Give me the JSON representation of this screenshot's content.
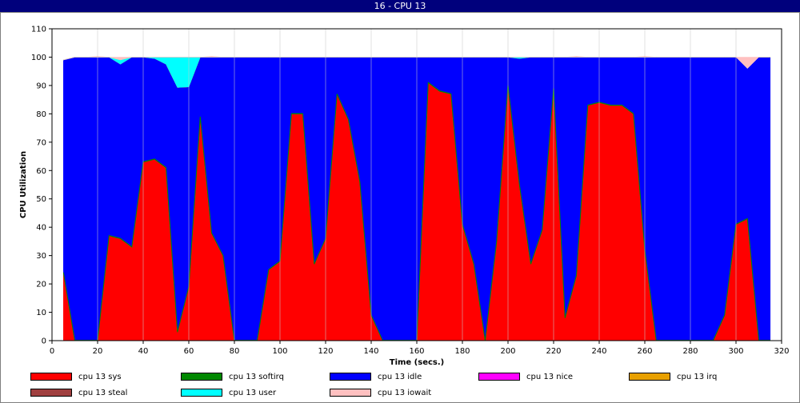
{
  "window": {
    "title": "16 - CPU 13"
  },
  "chart_data": {
    "type": "area",
    "stacked": true,
    "xlabel": "Time (secs.)",
    "ylabel": "CPU Utilization",
    "xlim": [
      0,
      320
    ],
    "ylim": [
      0,
      110
    ],
    "xticks": [
      0,
      20,
      40,
      60,
      80,
      100,
      120,
      140,
      160,
      180,
      200,
      220,
      240,
      260,
      280,
      300,
      320
    ],
    "yticks": [
      0,
      10,
      20,
      30,
      40,
      50,
      60,
      70,
      80,
      90,
      100,
      110
    ],
    "grid": true,
    "legend_position": "bottom",
    "x": [
      5,
      10,
      15,
      20,
      25,
      30,
      35,
      40,
      45,
      50,
      55,
      60,
      65,
      70,
      75,
      80,
      85,
      90,
      95,
      100,
      105,
      110,
      115,
      120,
      125,
      130,
      135,
      140,
      145,
      150,
      155,
      160,
      165,
      170,
      175,
      180,
      185,
      190,
      195,
      200,
      205,
      210,
      215,
      220,
      225,
      230,
      235,
      240,
      245,
      250,
      255,
      260,
      265,
      270,
      275,
      280,
      285,
      290,
      295,
      300,
      305,
      310,
      315
    ],
    "series": [
      {
        "name": "cpu 13 sys",
        "color": "#ff0000",
        "values": [
          24,
          0,
          0,
          0,
          37,
          36,
          33,
          63,
          64,
          61,
          3,
          19,
          79,
          38,
          30,
          0,
          0,
          0,
          25,
          28,
          80,
          80,
          27,
          36,
          87,
          78,
          56,
          9,
          0,
          0,
          0,
          0,
          91,
          88,
          87,
          41,
          27,
          0,
          35,
          90,
          55,
          27,
          39,
          89,
          8,
          23,
          83,
          84,
          83,
          83,
          80,
          32,
          0,
          0,
          0,
          0,
          0,
          0,
          9,
          41,
          43,
          0,
          0
        ]
      },
      {
        "name": "cpu 13 softirq",
        "color": "#008800",
        "values": [
          0.3,
          0.3,
          0.3,
          0.3,
          0.3,
          0.3,
          0.3,
          0.3,
          0.3,
          0.3,
          0.3,
          0.3,
          0.3,
          0.3,
          0.3,
          0.3,
          0.3,
          0.3,
          0.3,
          0.3,
          0.3,
          0.3,
          0.3,
          0.3,
          0.3,
          0.3,
          0.3,
          0.3,
          0.3,
          0.3,
          0.3,
          0.3,
          0.3,
          0.3,
          0.3,
          0.3,
          0.3,
          0.3,
          0.3,
          0.3,
          0.3,
          0.3,
          0.3,
          0.3,
          0.3,
          0.3,
          0.3,
          0.3,
          0.3,
          0.3,
          0.3,
          0.3,
          0.3,
          0.3,
          0.3,
          0.3,
          0.3,
          0.3,
          0.3,
          0.3,
          0.3,
          0.3,
          0.3
        ]
      },
      {
        "name": "cpu 13 idle",
        "color": "#0000ff",
        "values": [
          74.7,
          99.7,
          99.7,
          99.7,
          62.7,
          61.2,
          66.7,
          36.7,
          35.2,
          36.2,
          86,
          70.2,
          20.7,
          61.7,
          69.7,
          99.7,
          99.7,
          99.7,
          74.7,
          71.7,
          19.7,
          19.7,
          72.7,
          63.7,
          12.7,
          21.7,
          43.7,
          90.7,
          99.7,
          99.7,
          99.7,
          99.7,
          8.7,
          11.7,
          12.7,
          58.7,
          72.7,
          99.7,
          64.7,
          9.7,
          44.2,
          72.7,
          60.7,
          10.7,
          91.7,
          76.7,
          16.7,
          15.7,
          16.7,
          16.7,
          19.7,
          67.7,
          99.7,
          99.7,
          99.7,
          99.7,
          99.7,
          99.7,
          90.7,
          58.7,
          52.7,
          99.7,
          99.7
        ]
      },
      {
        "name": "cpu 13 nice",
        "color": "#ff00ff",
        "values": [
          0,
          0,
          0,
          0,
          0,
          0,
          0,
          0,
          0,
          0,
          0,
          0,
          0,
          0,
          0,
          0,
          0,
          0,
          0,
          0,
          0,
          0,
          0,
          0,
          0,
          0,
          0,
          0,
          0,
          0,
          0,
          0,
          0,
          0,
          0,
          0,
          0,
          0,
          0,
          0,
          0,
          0,
          0,
          0,
          0,
          0,
          0,
          0,
          0,
          0,
          0,
          0,
          0,
          0,
          0,
          0,
          0,
          0,
          0,
          0,
          0,
          0,
          0
        ]
      },
      {
        "name": "cpu 13 irq",
        "color": "#e8a000",
        "values": [
          0,
          0,
          0,
          0,
          0,
          0,
          0,
          0,
          0,
          0,
          0,
          0,
          0,
          0,
          0,
          0,
          0,
          0,
          0,
          0,
          0,
          0,
          0,
          0,
          0,
          0,
          0,
          0,
          0,
          0,
          0,
          0,
          0,
          0,
          0,
          0,
          0,
          0,
          0,
          0,
          0,
          0,
          0,
          0,
          0,
          0,
          0,
          0,
          0,
          0,
          0,
          0,
          0,
          0,
          0,
          0,
          0,
          0,
          0,
          0,
          0,
          0,
          0
        ]
      },
      {
        "name": "cpu 13 steal",
        "color": "#a04040",
        "values": [
          0,
          0,
          0,
          0,
          0,
          0,
          0,
          0,
          0,
          0,
          0,
          0,
          0,
          0,
          0,
          0,
          0,
          0,
          0,
          0,
          0,
          0,
          0,
          0,
          0,
          0,
          0,
          0,
          0,
          0,
          0,
          0,
          0,
          0,
          0,
          0,
          0,
          0,
          0,
          0,
          0,
          0,
          0,
          0,
          0,
          0,
          0,
          0,
          0,
          0,
          0,
          0,
          0,
          0,
          0,
          0,
          0,
          0,
          0,
          0,
          0,
          0,
          0
        ]
      },
      {
        "name": "cpu 13 user",
        "color": "#00ffff",
        "values": [
          0,
          0,
          0,
          0,
          0,
          1.5,
          0,
          0,
          0.5,
          2.5,
          10.7,
          10.5,
          0,
          0,
          0,
          0,
          0,
          0,
          0,
          0,
          0,
          0,
          0,
          0,
          0,
          0,
          0,
          0,
          0,
          0,
          0,
          0,
          0,
          0,
          0,
          0,
          0,
          0,
          0,
          0,
          0.5,
          0,
          0,
          0,
          0,
          0,
          0,
          0,
          0,
          0,
          0,
          0,
          0,
          0,
          0,
          0,
          0,
          0,
          0,
          0,
          0,
          0,
          0
        ]
      },
      {
        "name": "cpu 13 iowait",
        "color": "#ffc0c0",
        "values": [
          0,
          0,
          0,
          0.3,
          0,
          1,
          0,
          0,
          0,
          0,
          0,
          0,
          0,
          0.3,
          0,
          0,
          0,
          0,
          0,
          0,
          0,
          0,
          0,
          0,
          0,
          0,
          0,
          0,
          0,
          0,
          0,
          0,
          0,
          0,
          0,
          0,
          0,
          0,
          0,
          0,
          0,
          0,
          0,
          0,
          0,
          0.3,
          0,
          0,
          0,
          0,
          0,
          0.3,
          0,
          0,
          0,
          0,
          0,
          0,
          0,
          0,
          4,
          0,
          0
        ]
      }
    ]
  }
}
